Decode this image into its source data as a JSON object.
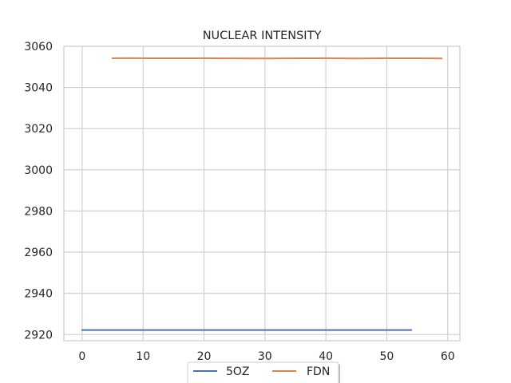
{
  "chart_data": {
    "type": "line",
    "title": "NUCLEAR INTENSITY",
    "xlabel": "",
    "ylabel": "",
    "xlim": [
      -3,
      62
    ],
    "ylim": [
      2917,
      3060
    ],
    "x_ticks": [
      0,
      10,
      20,
      30,
      40,
      50,
      60
    ],
    "y_ticks": [
      2920,
      2940,
      2960,
      2980,
      3000,
      3020,
      3040,
      3060
    ],
    "grid": true,
    "legend_placement": "bottom-center",
    "series": [
      {
        "name": "5OZ",
        "color": "#4c72b0",
        "x": [
          0,
          10,
          20,
          30,
          40,
          50,
          54
        ],
        "y": [
          2922.2,
          2922.2,
          2922.2,
          2922.2,
          2922.2,
          2922.2,
          2922.2
        ]
      },
      {
        "name": "FDN",
        "color": "#dd8452",
        "x": [
          5,
          8,
          10,
          20,
          30,
          40,
          45,
          50,
          55,
          59
        ],
        "y": [
          3054.2,
          3054.3,
          3054.2,
          3054.2,
          3054.1,
          3054.2,
          3054.1,
          3054.2,
          3054.2,
          3054.1
        ]
      }
    ]
  }
}
